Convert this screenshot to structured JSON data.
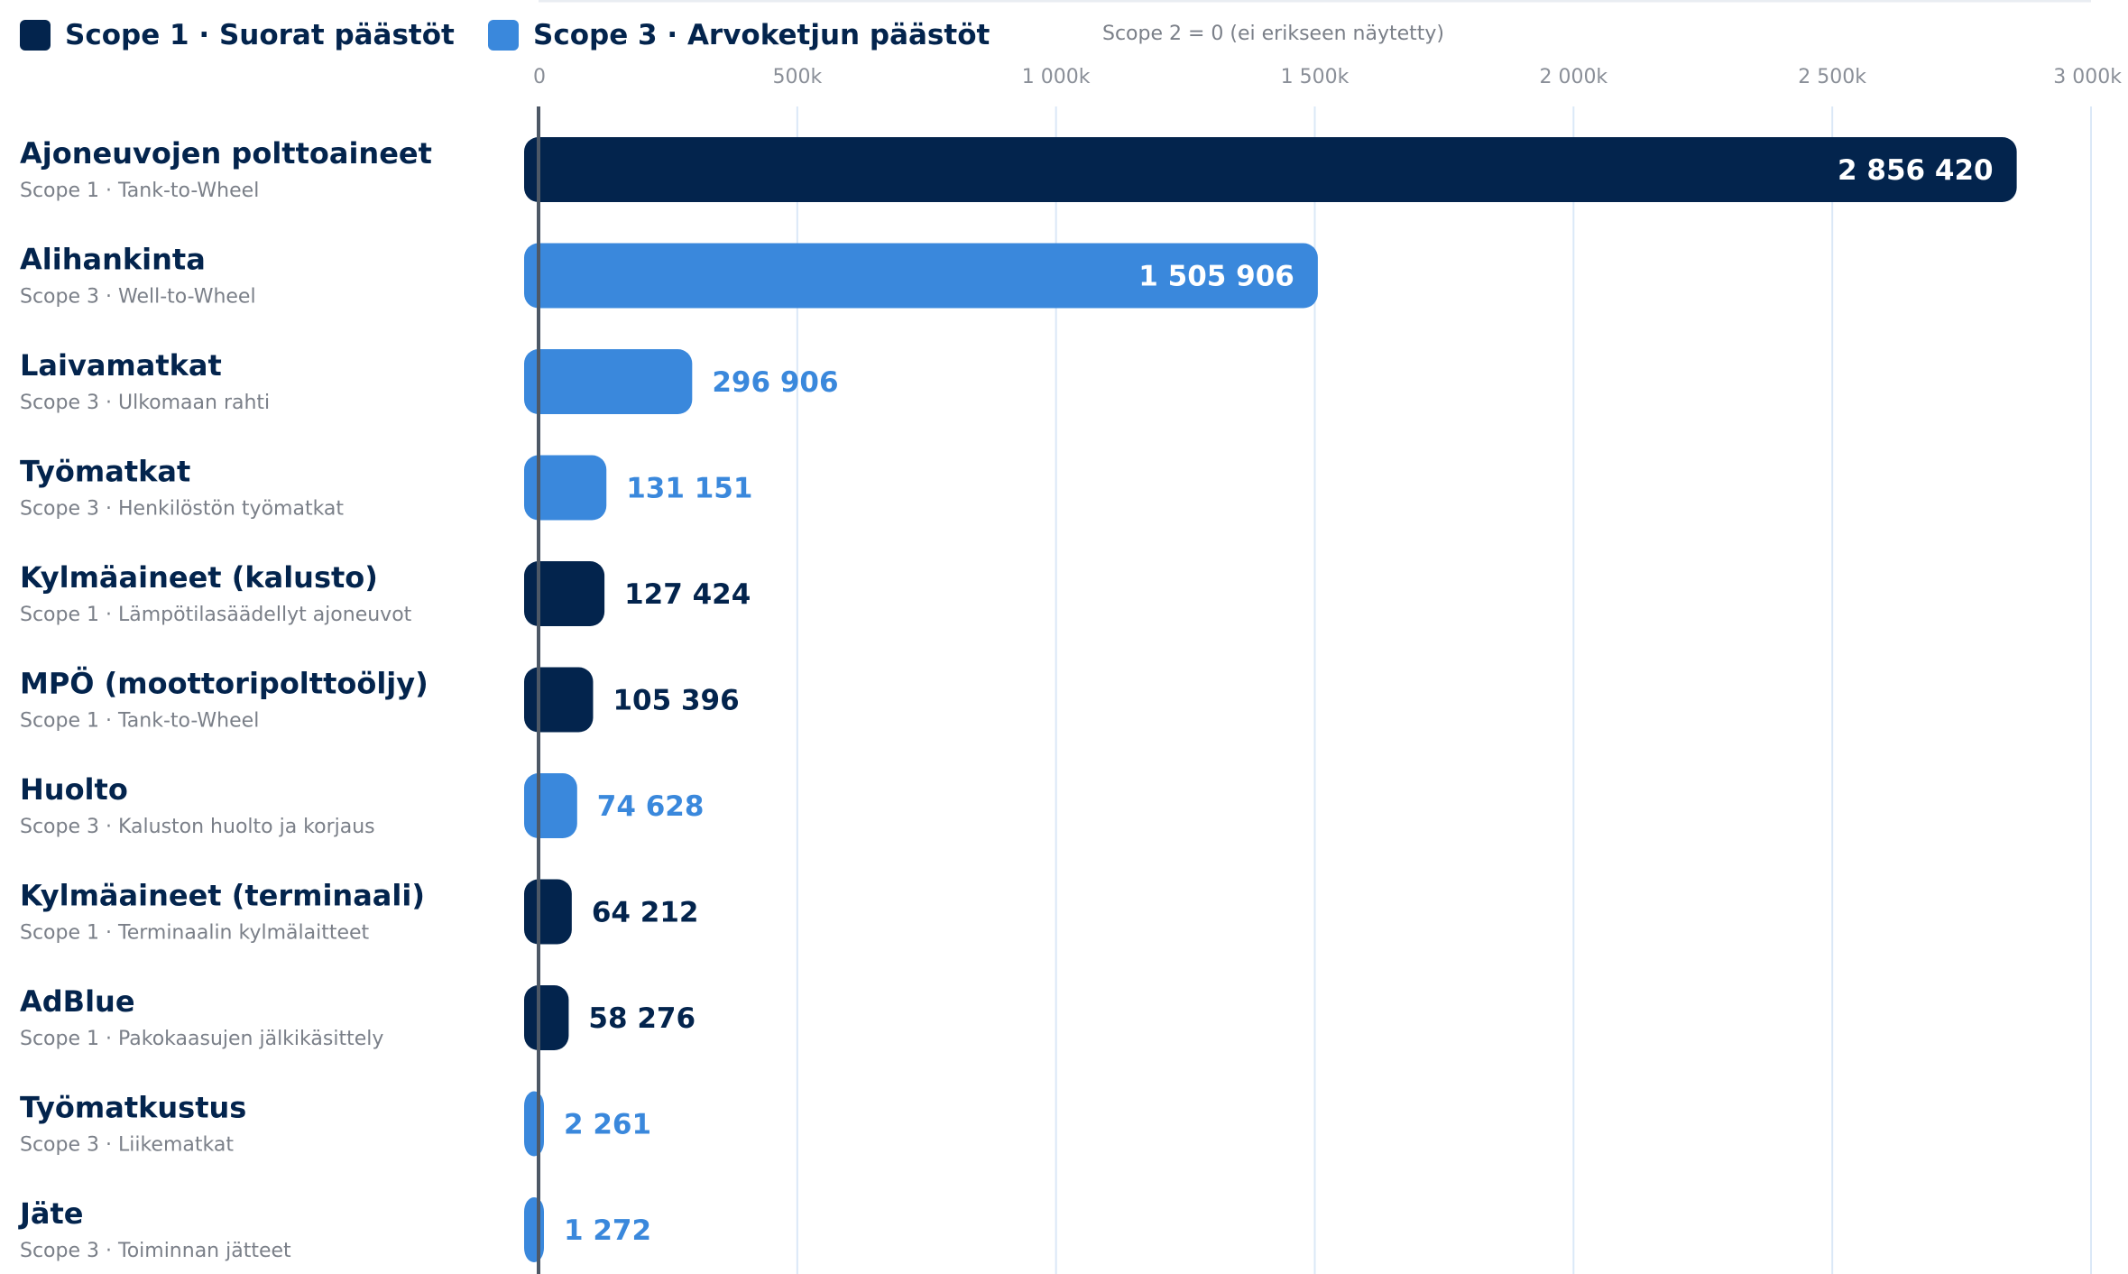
{
  "chart_data": {
    "type": "bar",
    "orientation": "horizontal",
    "xlim": [
      0,
      3000000
    ],
    "x_ticks": [
      0,
      500000,
      1000000,
      1500000,
      2000000,
      2500000,
      3000000
    ],
    "x_tick_labels": [
      "0",
      "500k",
      "1 000k",
      "1 500k",
      "2 000k",
      "2 500k",
      "3 000k"
    ],
    "grid": true,
    "legend_position": "top-left",
    "legend": [
      {
        "label": "Scope 1 · Suorat päästöt",
        "color": "#03244d"
      },
      {
        "label": "Scope 3 · Arvoketjun päästöt",
        "color": "#3a88dc"
      }
    ],
    "legend_note": "Scope 2 = 0 (ei erikseen näytetty)",
    "colors": {
      "scope1": "#03244d",
      "scope3": "#3a88dc"
    },
    "categories": [
      {
        "name": "Ajoneuvojen polttoaineet",
        "subtitle": "Scope 1 · Tank-to-Wheel",
        "scope": "scope1",
        "value": 2856420,
        "value_label": "2 856 420"
      },
      {
        "name": "Alihankinta",
        "subtitle": "Scope 3 · Well-to-Wheel",
        "scope": "scope3",
        "value": 1505906,
        "value_label": "1 505 906"
      },
      {
        "name": "Laivamatkat",
        "subtitle": "Scope 3 · Ulkomaan rahti",
        "scope": "scope3",
        "value": 296906,
        "value_label": "296 906"
      },
      {
        "name": "Työmatkat",
        "subtitle": "Scope 3 · Henkilöstön työmatkat",
        "scope": "scope3",
        "value": 131151,
        "value_label": "131 151"
      },
      {
        "name": "Kylmäaineet (kalusto)",
        "subtitle": "Scope 1 · Lämpötilasäädellyt ajoneuvot",
        "scope": "scope1",
        "value": 127424,
        "value_label": "127 424"
      },
      {
        "name": "MPÖ (moottoripolttoöljy)",
        "subtitle": "Scope 1 · Tank-to-Wheel",
        "scope": "scope1",
        "value": 105396,
        "value_label": "105 396"
      },
      {
        "name": "Huolto",
        "subtitle": "Scope 3 · Kaluston huolto ja korjaus",
        "scope": "scope3",
        "value": 74628,
        "value_label": "74 628"
      },
      {
        "name": "Kylmäaineet (terminaali)",
        "subtitle": "Scope 1 · Terminaalin kylmälaitteet",
        "scope": "scope1",
        "value": 64212,
        "value_label": "64 212"
      },
      {
        "name": "AdBlue",
        "subtitle": "Scope 1 · Pakokaasujen jälkikäsittely",
        "scope": "scope1",
        "value": 58276,
        "value_label": "58 276"
      },
      {
        "name": "Työmatkustus",
        "subtitle": "Scope 3 · Liikematkat",
        "scope": "scope3",
        "value": 2261,
        "value_label": "2 261"
      },
      {
        "name": "Jäte",
        "subtitle": "Scope 3 · Toiminnan jätteet",
        "scope": "scope3",
        "value": 1272,
        "value_label": "1 272"
      }
    ]
  }
}
